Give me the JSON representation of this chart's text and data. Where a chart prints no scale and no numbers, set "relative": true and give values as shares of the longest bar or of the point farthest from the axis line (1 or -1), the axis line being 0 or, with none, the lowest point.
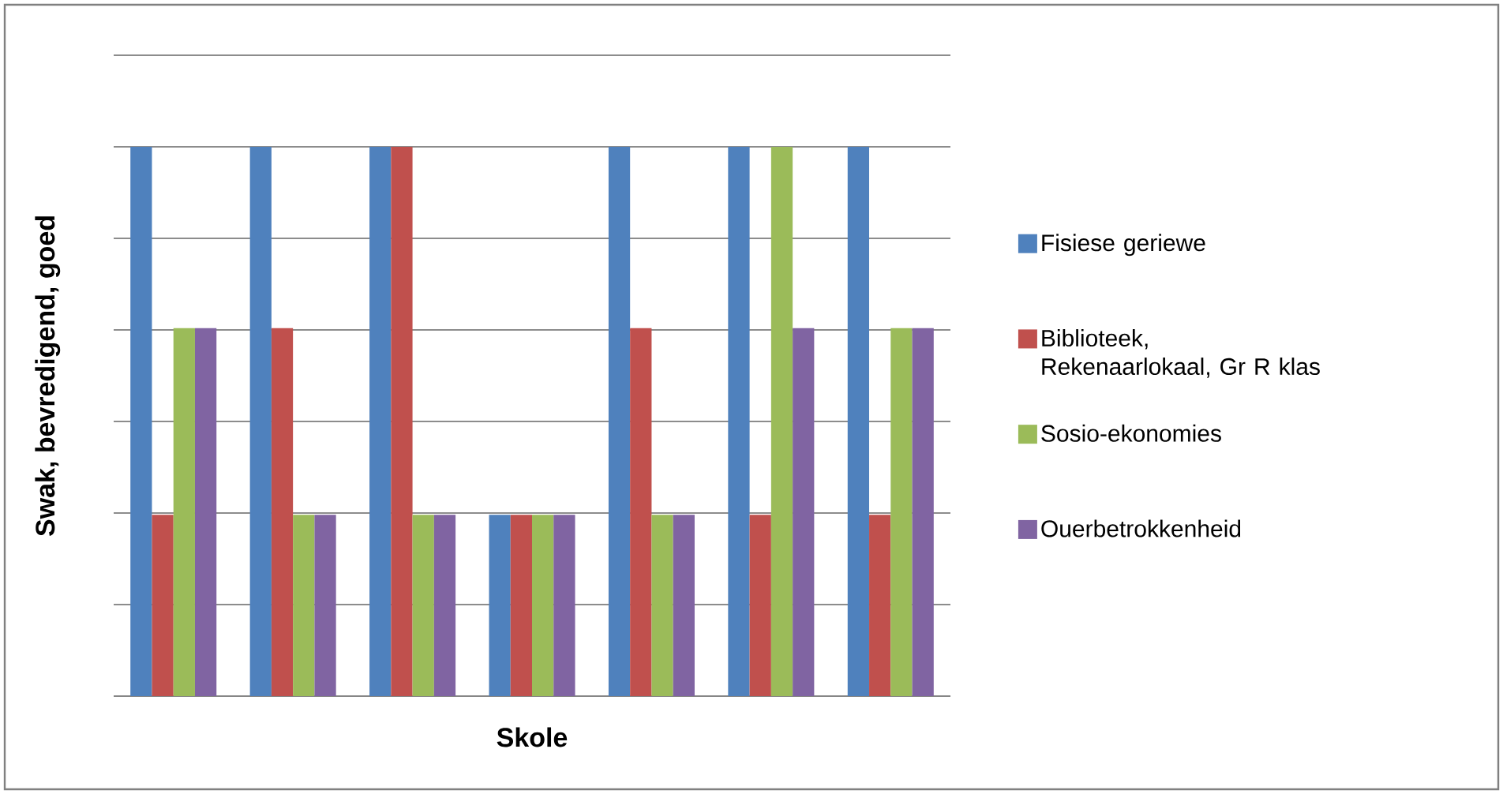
{
  "chart_data": {
    "type": "bar",
    "xlabel": "Skole",
    "ylabel": "Swak, bevredigend, goed",
    "relative": true,
    "grid": "y",
    "legend": "right",
    "categories": [
      null,
      null,
      null,
      null,
      null,
      null,
      null
    ],
    "series": [
      {
        "name": "Fisiese geriewe",
        "color": "#4f81bd",
        "values": [
          1,
          1,
          1,
          0.33,
          1,
          1,
          1
        ]
      },
      {
        "name": "Biblioteek, Rekenaarlokaal, Gr R klas",
        "color": "#c0504d",
        "values": [
          0.33,
          0.67,
          1,
          0.33,
          0.67,
          0.33,
          0.33
        ]
      },
      {
        "name": "Sosio-ekonomies",
        "color": "#9bbb59",
        "values": [
          0.67,
          0.33,
          0.33,
          0.33,
          0.33,
          1,
          0.67
        ]
      },
      {
        "name": "Ouerbetrokkenheid",
        "color": "#8064a2",
        "values": [
          0.67,
          0.33,
          0.33,
          0.33,
          0.33,
          0.67,
          0.67
        ]
      }
    ]
  }
}
